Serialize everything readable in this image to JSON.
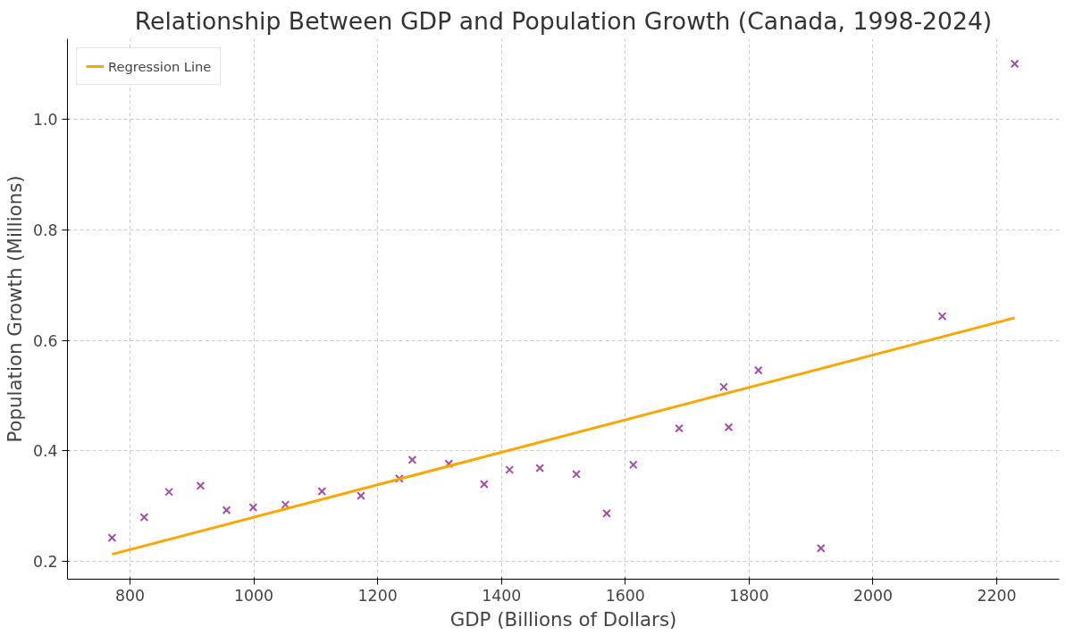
{
  "chart_data": {
    "type": "scatter",
    "title": "Relationship Between GDP and Population Growth (Canada, 1998-2024)",
    "xlabel": "GDP (Billions of Dollars)",
    "ylabel": "Population Growth (Millions)",
    "xlim": [
      699,
      2301
    ],
    "ylim": [
      0.168,
      1.146
    ],
    "xticks": [
      800,
      1000,
      1200,
      1400,
      1600,
      1800,
      2000,
      2200
    ],
    "yticks": [
      {
        "value": 0.2,
        "label": "0.2"
      },
      {
        "value": 0.4,
        "label": "0.4"
      },
      {
        "value": 0.6,
        "label": "0.6"
      },
      {
        "value": 0.8,
        "label": "0.8"
      },
      {
        "value": 1.0,
        "label": "1.0"
      }
    ],
    "grid": true,
    "legend": "top left",
    "series": [
      {
        "color": "#a34ea6",
        "marker": "cross",
        "x": [
          771,
          823,
          863,
          914,
          956,
          999,
          1051,
          1110,
          1173,
          1235,
          1256,
          1315,
          1372,
          1413,
          1462,
          1521,
          1570,
          1613,
          1687,
          1759,
          1767,
          1815,
          1916,
          2112,
          2229
        ],
        "values": [
          0.243,
          0.28,
          0.326,
          0.337,
          0.293,
          0.298,
          0.303,
          0.327,
          0.319,
          0.35,
          0.384,
          0.377,
          0.34,
          0.366,
          0.369,
          0.358,
          0.287,
          0.375,
          0.441,
          0.516,
          0.443,
          0.546,
          0.224,
          0.644,
          1.101
        ]
      },
      {
        "type": "line",
        "name": "Regression Line",
        "color": "#ffa500",
        "line_style": "solid",
        "x": [
          771,
          2229
        ],
        "values": [
          0.213,
          0.641
        ]
      }
    ]
  }
}
